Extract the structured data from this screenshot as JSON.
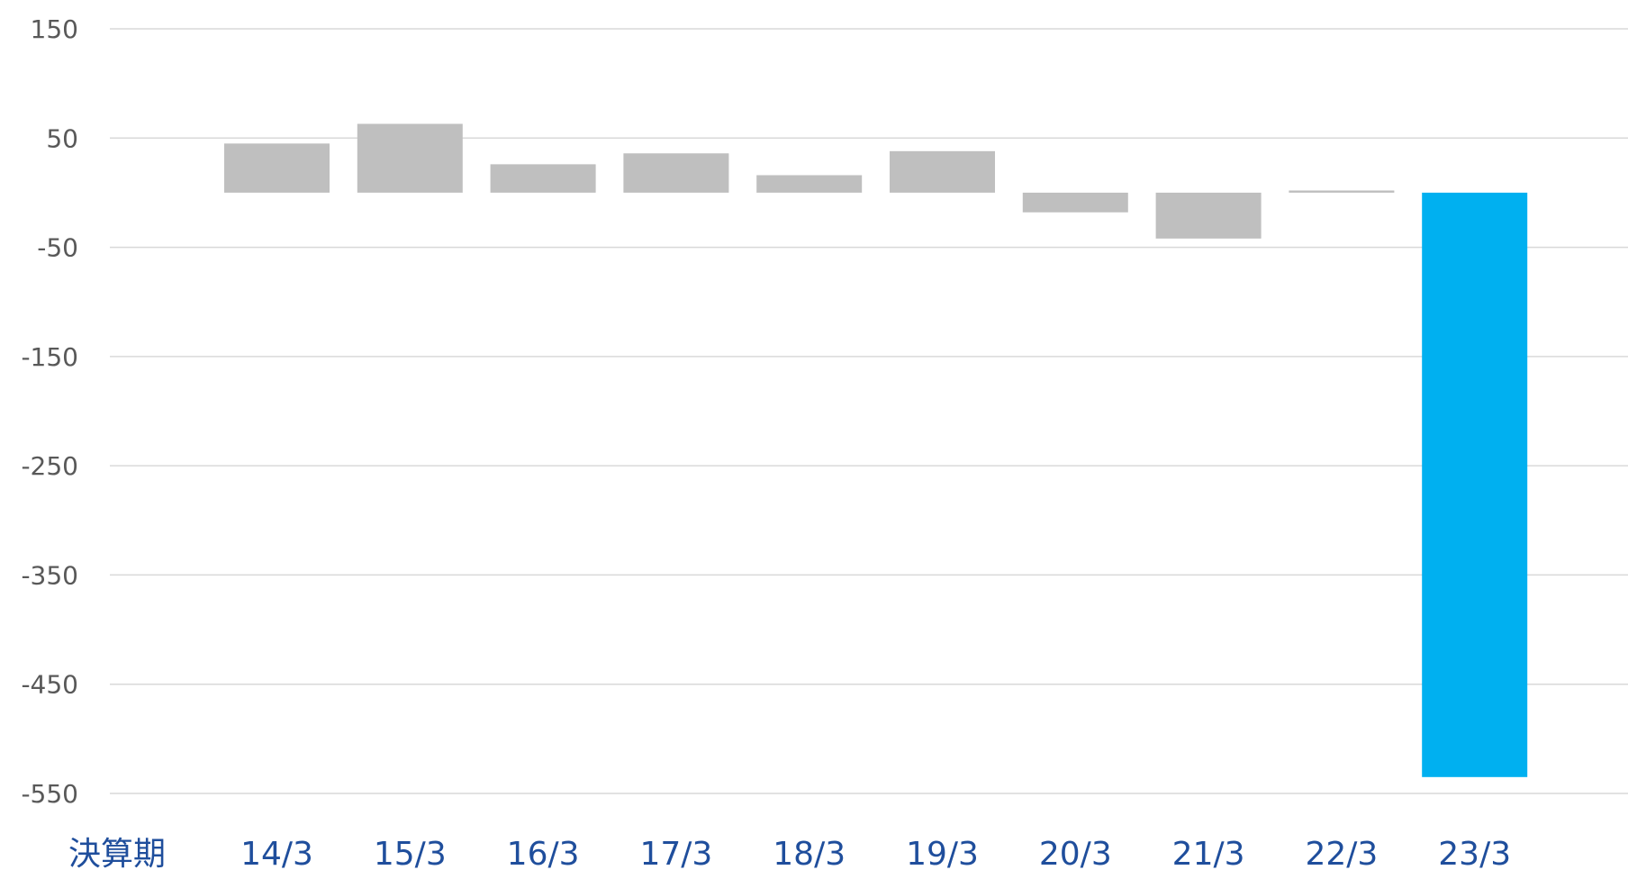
{
  "chart_data": {
    "type": "bar",
    "xlabel": "決算期",
    "ylabel": "",
    "categories": [
      "14/3",
      "15/3",
      "16/3",
      "17/3",
      "18/3",
      "19/3",
      "20/3",
      "21/3",
      "22/3",
      "23/3"
    ],
    "values": [
      45,
      63,
      26,
      36,
      16,
      38,
      -18,
      -42,
      2,
      -535
    ],
    "ylim": [
      -550,
      150
    ],
    "yticks": [
      150,
      50,
      -50,
      -150,
      -250,
      -350,
      -450,
      -550
    ],
    "ytick_labels": [
      "150",
      "50",
      "-50",
      "-150",
      "-250",
      "-350",
      "-450",
      "-550"
    ],
    "grid": true,
    "legend": "none",
    "colors": {
      "default_bar": "#bfbfbf",
      "highlight_bar": "#00b0f0",
      "x_tick_text": "#1f4e9c",
      "y_tick_text": "#595959",
      "gridline": "#d9d9d9"
    },
    "highlight_categories": [
      "23/3"
    ]
  }
}
